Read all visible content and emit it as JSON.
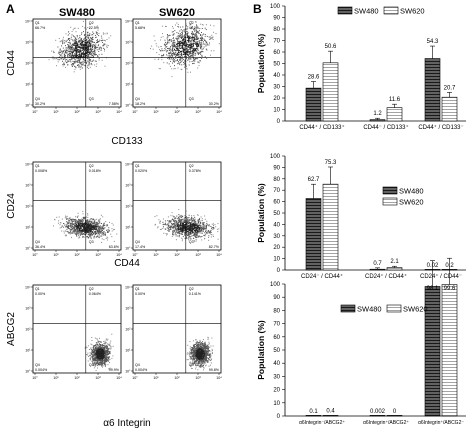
{
  "panels": [
    {
      "letter": "A"
    },
    {
      "letter": "B"
    }
  ],
  "cell_lines": [
    "SW480",
    "SW620"
  ],
  "series_colors": {
    "SW480": "#555555",
    "SW620": "#ffffff"
  },
  "flow_rows": [
    {
      "ylabel": "CD44",
      "xlabel": "CD133",
      "plots": [
        {
          "line": "SW480",
          "Q1": "66.7%",
          "Q2": "22.5%",
          "Q3": "7.58%",
          "Q4": "30.2%"
        },
        {
          "line": "SW620",
          "Q1": "5.68%",
          "Q2": "44.0%",
          "Q3": "30.2%",
          "Q4": "18.2%"
        }
      ]
    },
    {
      "ylabel": "CD24",
      "xlabel": "CD44",
      "plots": [
        {
          "line": "SW480",
          "Q1": "0.008%",
          "Q2": "0.018%",
          "Q3": "63.6%",
          "Q4": "36.4%"
        },
        {
          "line": "SW620",
          "Q1": "0.020%",
          "Q2": "0.378%",
          "Q3": "82.7%",
          "Q4": "17.4%"
        }
      ]
    },
    {
      "ylabel": "ABCG2",
      "xlabel": "α6 Integrin",
      "plots": [
        {
          "line": "SW480",
          "Q1": "0.00%",
          "Q2": "0.064%",
          "Q3": "99.9%",
          "Q4": "0.004%"
        },
        {
          "line": "SW620",
          "Q1": "0.00%",
          "Q2": "0.141%",
          "Q3": "99.8%",
          "Q4": "0.004%"
        }
      ]
    }
  ],
  "flow_axis": {
    "ticks": [
      "10°",
      "10¹",
      "10²",
      "10³",
      "10⁴"
    ]
  },
  "chart_data": [
    {
      "type": "bar",
      "ylabel": "Population (%)",
      "ylim": [
        0,
        100
      ],
      "yticks": [
        0,
        10,
        20,
        30,
        40,
        50,
        60,
        70,
        80,
        90,
        100
      ],
      "legend_position": "top-center",
      "categories": [
        "CD44⁺ / CD133⁺",
        "CD44⁻ / CD133⁺",
        "CD44⁺ / CD133⁻"
      ],
      "series": [
        {
          "name": "SW480",
          "values": [
            28.6,
            1.2,
            54.3
          ],
          "labels": [
            "28.6",
            "1.2",
            "54.3"
          ]
        },
        {
          "name": "SW620",
          "values": [
            50.6,
            11.6,
            20.7
          ],
          "labels": [
            "50.6",
            "11.6",
            "20.7"
          ]
        }
      ]
    },
    {
      "type": "bar",
      "ylabel": "Population (%)",
      "ylim": [
        0,
        100
      ],
      "yticks": [
        0,
        10,
        20,
        30,
        40,
        50,
        60,
        70,
        80,
        90,
        100
      ],
      "legend_position": "top-right",
      "categories": [
        "CD24⁻ / CD44⁺",
        "CD24⁺ / CD44⁺",
        "CD24⁺ / CD44⁻"
      ],
      "series": [
        {
          "name": "SW480",
          "values": [
            62.7,
            0.7,
            0.02
          ],
          "labels": [
            "62.7",
            "0.7",
            "0.02"
          ]
        },
        {
          "name": "SW620",
          "values": [
            75.3,
            2.1,
            0.2
          ],
          "labels": [
            "75.3",
            "2.1",
            "0.2"
          ]
        }
      ]
    },
    {
      "type": "bar",
      "ylabel": "Population (%)",
      "ylim": [
        0,
        100
      ],
      "yticks": [
        0,
        10,
        20,
        30,
        40,
        50,
        60,
        70,
        80,
        90,
        100
      ],
      "legend_position": "top-center",
      "categories": [
        "α6Integrin⁻/ABCG2⁺",
        "α6Integrin⁺/ABCG2⁺",
        "α6Integrin⁺/ABCG2⁻"
      ],
      "series": [
        {
          "name": "SW480",
          "values": [
            0.1,
            0.002,
            98.1
          ],
          "labels": [
            "0.1",
            "0.002",
            "98.1"
          ]
        },
        {
          "name": "SW620",
          "values": [
            0.4,
            0,
            99.6
          ],
          "labels": [
            "0.4",
            "0",
            "99.6"
          ]
        }
      ]
    }
  ]
}
